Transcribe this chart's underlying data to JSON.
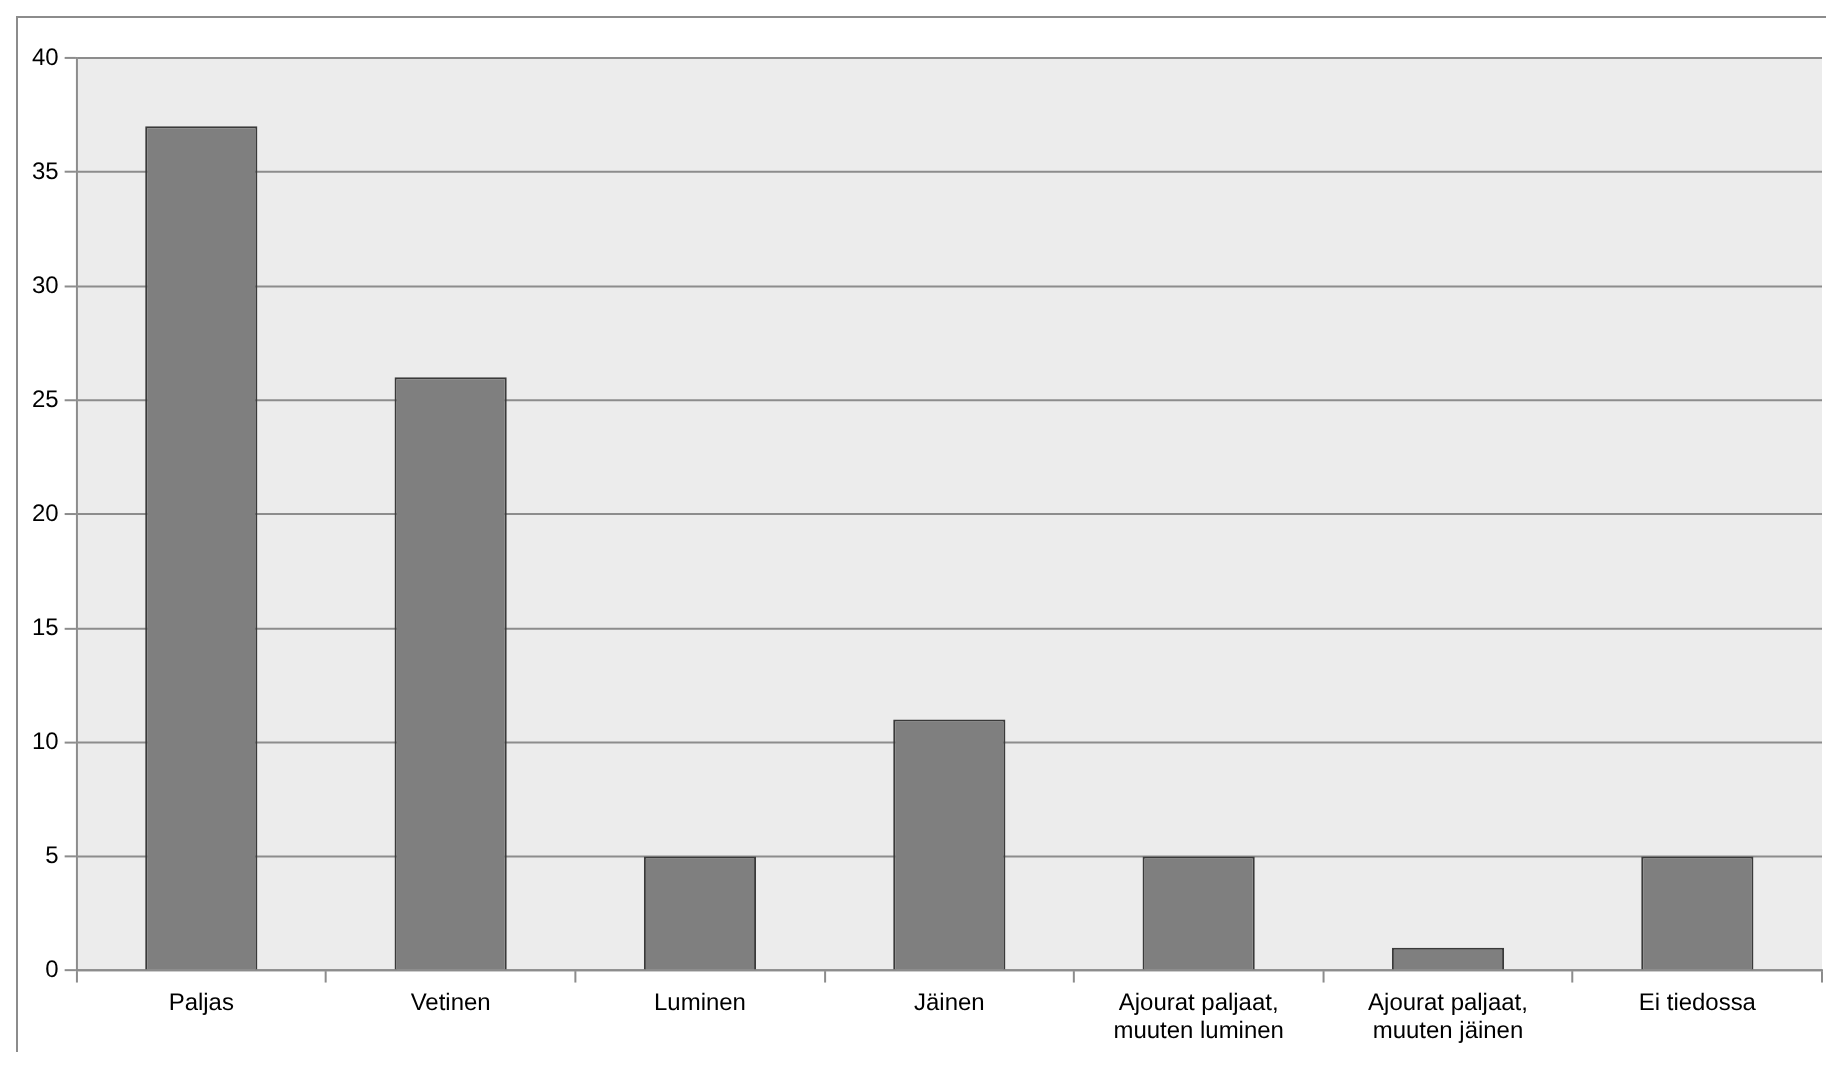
{
  "chart_data": {
    "type": "bar",
    "categories": [
      "Paljas",
      "Vetinen",
      "Luminen",
      "Jäinen",
      "Ajourat paljaat, muuten luminen",
      "Ajourat paljaat, muuten jäinen",
      "Ei tiedossa"
    ],
    "values": [
      37,
      26,
      5,
      11,
      5,
      1,
      5
    ],
    "color": "#7f7f7f",
    "ylim": [
      0,
      40
    ],
    "yticks": [
      0,
      5,
      10,
      15,
      20,
      25,
      30,
      35,
      40
    ],
    "grid": "y"
  }
}
